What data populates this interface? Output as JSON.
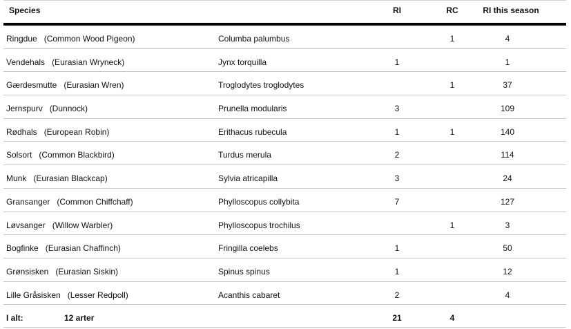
{
  "headers": {
    "species": "Species",
    "ri": "RI",
    "rc": "RC",
    "season": "RI this season"
  },
  "rows": [
    {
      "name": "Ringdue",
      "english": "(Common Wood Pigeon)",
      "latin": "Columba palumbus",
      "ri": "",
      "rc": "1",
      "season": "4"
    },
    {
      "name": "Vendehals",
      "english": "(Eurasian Wryneck)",
      "latin": "Jynx torquilla",
      "ri": "1",
      "rc": "",
      "season": "1"
    },
    {
      "name": "Gærdesmutte",
      "english": "(Eurasian Wren)",
      "latin": "Troglodytes troglodytes",
      "ri": "",
      "rc": "1",
      "season": "37"
    },
    {
      "name": "Jernspurv",
      "english": "(Dunnock)",
      "latin": "Prunella modularis",
      "ri": "3",
      "rc": "",
      "season": "109"
    },
    {
      "name": "Rødhals",
      "english": "(European Robin)",
      "latin": "Erithacus rubecula",
      "ri": "1",
      "rc": "1",
      "season": "140"
    },
    {
      "name": "Solsort",
      "english": "(Common Blackbird)",
      "latin": "Turdus merula",
      "ri": "2",
      "rc": "",
      "season": "114"
    },
    {
      "name": "Munk",
      "english": "(Eurasian Blackcap)",
      "latin": "Sylvia atricapilla",
      "ri": "3",
      "rc": "",
      "season": "24"
    },
    {
      "name": "Gransanger",
      "english": "(Common Chiffchaff)",
      "latin": "Phylloscopus collybita",
      "ri": "7",
      "rc": "",
      "season": "127"
    },
    {
      "name": "Løvsanger",
      "english": "(Willow Warbler)",
      "latin": "Phylloscopus trochilus",
      "ri": "",
      "rc": "1",
      "season": "3"
    },
    {
      "name": "Bogfinke",
      "english": "(Eurasian Chaffinch)",
      "latin": "Fringilla coelebs",
      "ri": "1",
      "rc": "",
      "season": "50"
    },
    {
      "name": "Grønsisken",
      "english": "(Eurasian Siskin)",
      "latin": "Spinus spinus",
      "ri": "1",
      "rc": "",
      "season": "12"
    },
    {
      "name": "Lille Gråsisken",
      "english": "(Lesser Redpoll)",
      "latin": "Acanthis cabaret",
      "ri": "2",
      "rc": "",
      "season": "4"
    }
  ],
  "total": {
    "label": "I alt:",
    "count": "12 arter",
    "ri": "21",
    "rc": "4"
  }
}
